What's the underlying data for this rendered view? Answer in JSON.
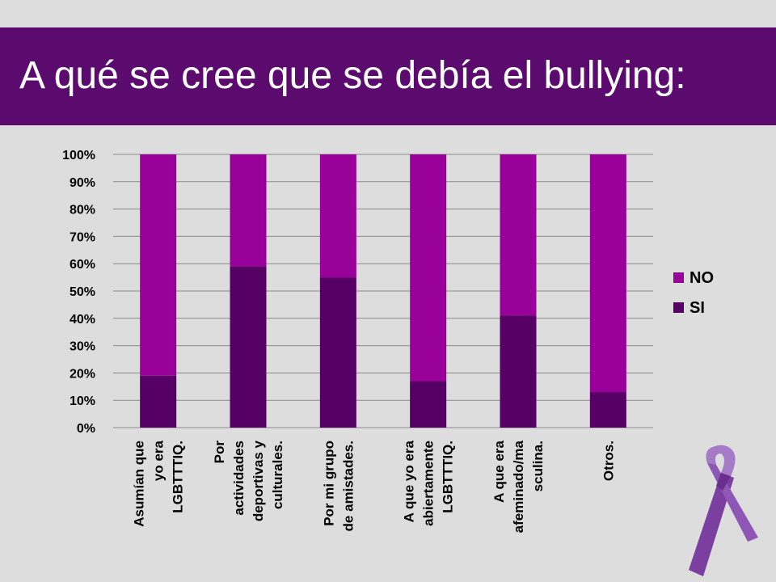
{
  "slide": {
    "title": "A qué se cree que se debía el bullying:"
  },
  "colors": {
    "band": "#5b0a6e",
    "no": "#990099",
    "si": "#560066"
  },
  "chart_data": {
    "type": "bar",
    "stacked": true,
    "percent_stacked": true,
    "title": "",
    "xlabel": "",
    "ylabel": "",
    "ylim": [
      0,
      100
    ],
    "yticks": [
      "0%",
      "10%",
      "20%",
      "30%",
      "40%",
      "50%",
      "60%",
      "70%",
      "80%",
      "90%",
      "100%"
    ],
    "grid": true,
    "legend_position": "right",
    "categories": [
      [
        "Asumían que",
        "yo era",
        "LGBTTTIQ."
      ],
      [
        "Por",
        "actividades",
        "deportivas y",
        "culturales."
      ],
      [
        "Por mi grupo",
        "de amistades."
      ],
      [
        "A que yo era",
        "abiertamente",
        "LGBTTTIQ."
      ],
      [
        "A que era",
        "afeminado/ma",
        "sculina."
      ],
      [
        "Otros."
      ]
    ],
    "series": [
      {
        "name": "SI",
        "color": "#560066",
        "values": [
          19,
          59,
          55,
          17,
          41,
          13
        ]
      },
      {
        "name": "NO",
        "color": "#990099",
        "values": [
          81,
          41,
          45,
          83,
          59,
          87
        ]
      }
    ],
    "legend": [
      "NO",
      "SI"
    ]
  }
}
